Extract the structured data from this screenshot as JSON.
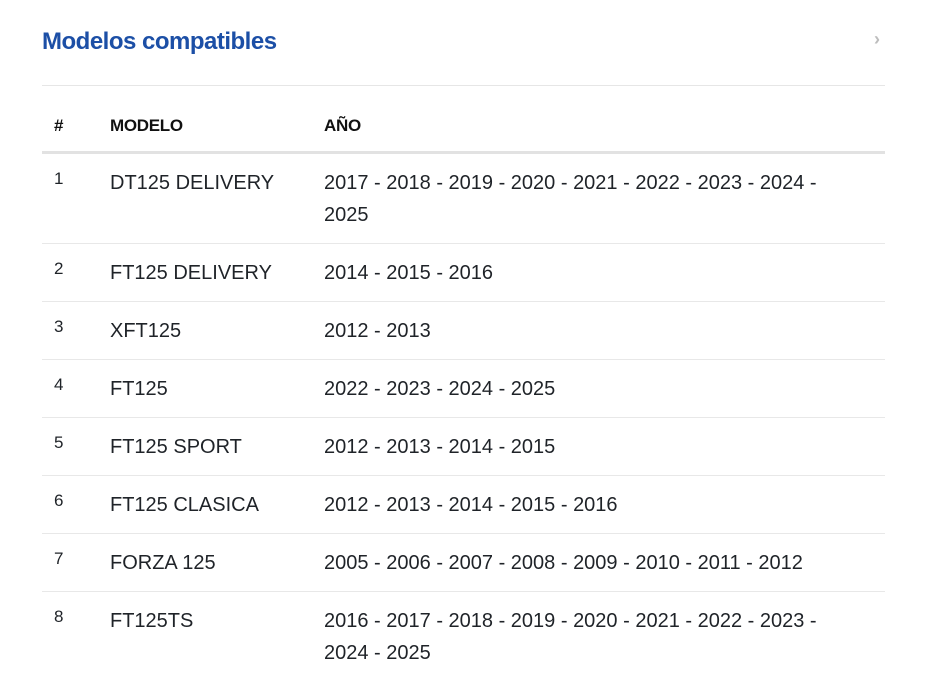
{
  "title": "Modelos compatibles",
  "icons": {
    "collapse": "chevron-right-icon"
  },
  "colors": {
    "title": "#1c4fa6"
  },
  "table": {
    "headers": [
      "#",
      "MODELO",
      "AÑO"
    ],
    "rows": [
      {
        "n": "1",
        "model": "DT125 DELIVERY",
        "years": "2017 - 2018 - 2019 - 2020 - 2021 - 2022 - 2023 - 2024 - 2025"
      },
      {
        "n": "2",
        "model": "FT125 DELIVERY",
        "years": "2014 - 2015 - 2016"
      },
      {
        "n": "3",
        "model": "XFT125",
        "years": "2012 - 2013"
      },
      {
        "n": "4",
        "model": "FT125",
        "years": "2022 - 2023 - 2024 - 2025"
      },
      {
        "n": "5",
        "model": "FT125 SPORT",
        "years": "2012 - 2013 - 2014 - 2015"
      },
      {
        "n": "6",
        "model": "FT125 CLASICA",
        "years": "2012 - 2013 - 2014 - 2015 - 2016"
      },
      {
        "n": "7",
        "model": "FORZA 125",
        "years": "2005 - 2006 - 2007 - 2008 - 2009 - 2010 - 2011 - 2012"
      },
      {
        "n": "8",
        "model": "FT125TS",
        "years": "2016 - 2017 - 2018 - 2019 - 2020 - 2021 - 2022 - 2023 - 2024 - 2025"
      }
    ]
  }
}
